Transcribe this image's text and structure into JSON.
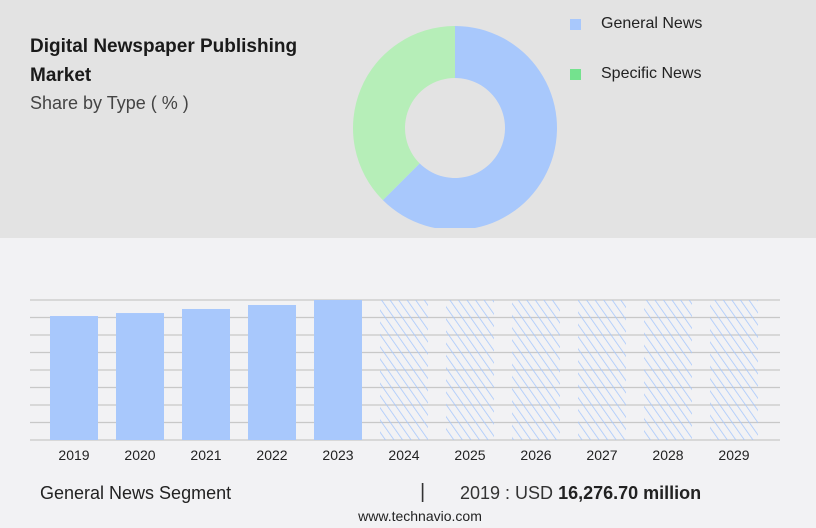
{
  "title": "Digital Newspaper Publishing Market",
  "subtitle": "Share by Type ( % )",
  "colors": {
    "general": "#a8c8fc",
    "specific": "#b6eeb8",
    "specific_legend": "#74e28e",
    "grid": "#c8c8c8"
  },
  "chart_data": [
    {
      "type": "pie",
      "donut": true,
      "legend_position": "top-right",
      "labels": [
        "General News",
        "Specific News"
      ],
      "values": [
        62.5,
        37.5
      ]
    },
    {
      "type": "bar",
      "categories": [
        "2019",
        "2020",
        "2021",
        "2022",
        "2023",
        "2024",
        "2025",
        "2026",
        "2027",
        "2028",
        "2029"
      ],
      "values": [
        16276.7,
        16670,
        17200,
        17725,
        18380,
        null,
        null,
        null,
        null,
        null,
        null
      ],
      "forecast_from": "2024",
      "grid": true,
      "ylabel": "",
      "xlabel": ""
    }
  ],
  "footer": {
    "segment": "General News Segment",
    "separator": "|",
    "year_label": "2019 : USD",
    "value": "16,276.70 million",
    "url": "www.technavio.com"
  }
}
